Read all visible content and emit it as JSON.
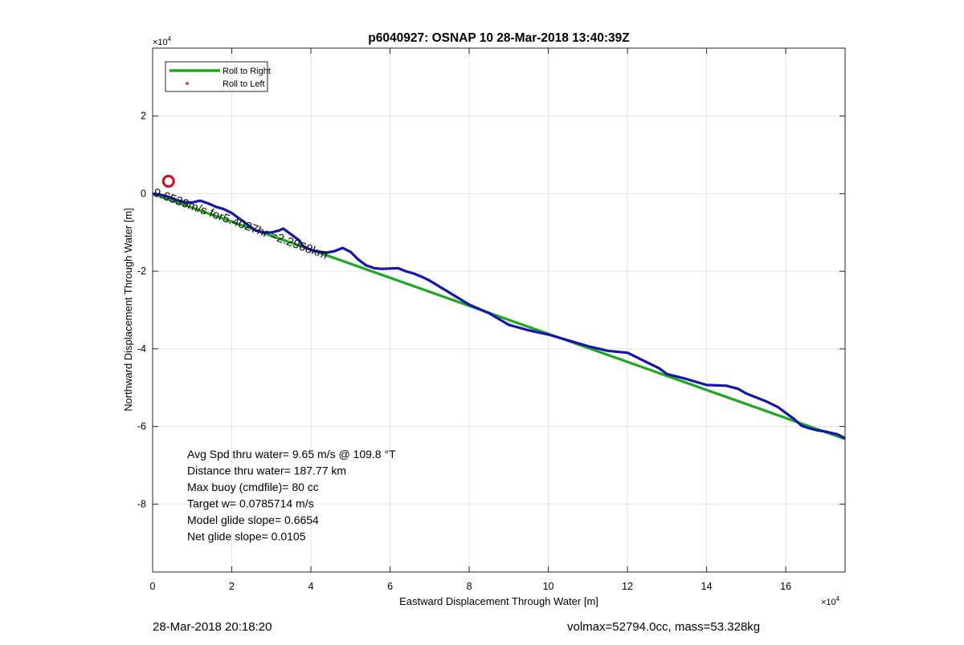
{
  "chart_data": {
    "type": "line",
    "title": "p6040927: OSNAP 10 28-Mar-2018 13:40:39Z",
    "xlabel": "Eastward Displacement Through Water [m]",
    "ylabel": "Northward Displacement Through Water [m]",
    "x_exponent": "×10",
    "x_exponent_power": "4",
    "y_exponent": "×10",
    "y_exponent_power": "4",
    "xlim": [
      0,
      175000
    ],
    "ylim": [
      -97500,
      37500
    ],
    "xticks": [
      0,
      20000,
      40000,
      60000,
      80000,
      100000,
      120000,
      140000,
      160000
    ],
    "xtick_labels": [
      "0",
      "2",
      "4",
      "6",
      "8",
      "10",
      "12",
      "14",
      "16"
    ],
    "yticks": [
      -80000,
      -60000,
      -40000,
      -20000,
      0,
      20000
    ],
    "ytick_labels": [
      "-8",
      "-6",
      "-4",
      "-2",
      "0",
      "2"
    ],
    "grid": true,
    "legend": {
      "location": "top-left",
      "entries": [
        {
          "label": "Roll to Right",
          "color": "#1aaa1a",
          "style": "line"
        },
        {
          "label": "Roll to Left",
          "color": "#dd1111",
          "style": "dot"
        }
      ]
    },
    "series": [
      {
        "color": "#1aaa1a",
        "x": [
          0,
          176000
        ],
        "y": [
          0,
          -63600
        ]
      },
      {
        "color": "#1414b4",
        "x": [
          0,
          2000,
          4000,
          6000,
          8000,
          10000,
          12000,
          14000,
          16000,
          18000,
          20000,
          22000,
          24000,
          26000,
          28000,
          30000,
          32000,
          33000,
          35000,
          37000,
          38000,
          40000,
          42000,
          44000,
          46000,
          48000,
          50000,
          52000,
          54000,
          56000,
          58000,
          60000,
          62000,
          64000,
          66000,
          68000,
          70000,
          75000,
          80000,
          85000,
          90000,
          95000,
          100000,
          105000,
          110000,
          115000,
          120000,
          125000,
          128000,
          130000,
          135000,
          140000,
          145000,
          148000,
          150000,
          155000,
          158000,
          160000,
          162000,
          164000,
          166000,
          168000,
          170000,
          173000,
          175000,
          176000
        ],
        "y": [
          0,
          -300,
          -800,
          -1600,
          -2200,
          -2300,
          -1800,
          -2500,
          -3400,
          -4000,
          -5000,
          -6500,
          -8000,
          -9500,
          -10000,
          -10000,
          -9500,
          -9000,
          -10500,
          -12000,
          -13500,
          -14500,
          -15000,
          -15200,
          -14800,
          -14000,
          -15000,
          -17000,
          -18500,
          -19200,
          -19400,
          -19300,
          -19200,
          -20000,
          -20600,
          -21400,
          -22400,
          -25500,
          -28600,
          -30800,
          -33800,
          -35200,
          -36300,
          -37800,
          -39300,
          -40500,
          -41000,
          -43500,
          -45000,
          -46500,
          -47800,
          -49300,
          -49500,
          -50300,
          -51500,
          -53500,
          -55000,
          -56500,
          -58000,
          -59800,
          -60500,
          -61000,
          -61300,
          -62000,
          -63000,
          -63600
        ]
      }
    ],
    "marker": {
      "x": 4000,
      "y": 3200,
      "color": "#cc1111"
    },
    "overlay_label": {
      "text": "9.6539m/s for5.4027hr =2.2968km",
      "x": 0,
      "y": -500,
      "color": "#111111"
    },
    "annotations": [
      "Avg Spd thru water=  9.65 m/s @ 109.8 °T",
      "Distance thru water= 187.77 km",
      "Max buoy (cmdfile)= 80 cc",
      "Target w= 0.0785714 m/s",
      "Model glide slope= 0.6654",
      "Net glide slope= 0.0105"
    ]
  },
  "footer": {
    "left": "28-Mar-2018 20:18:20",
    "right": "volmax=52794.0cc, mass=53.328kg"
  }
}
